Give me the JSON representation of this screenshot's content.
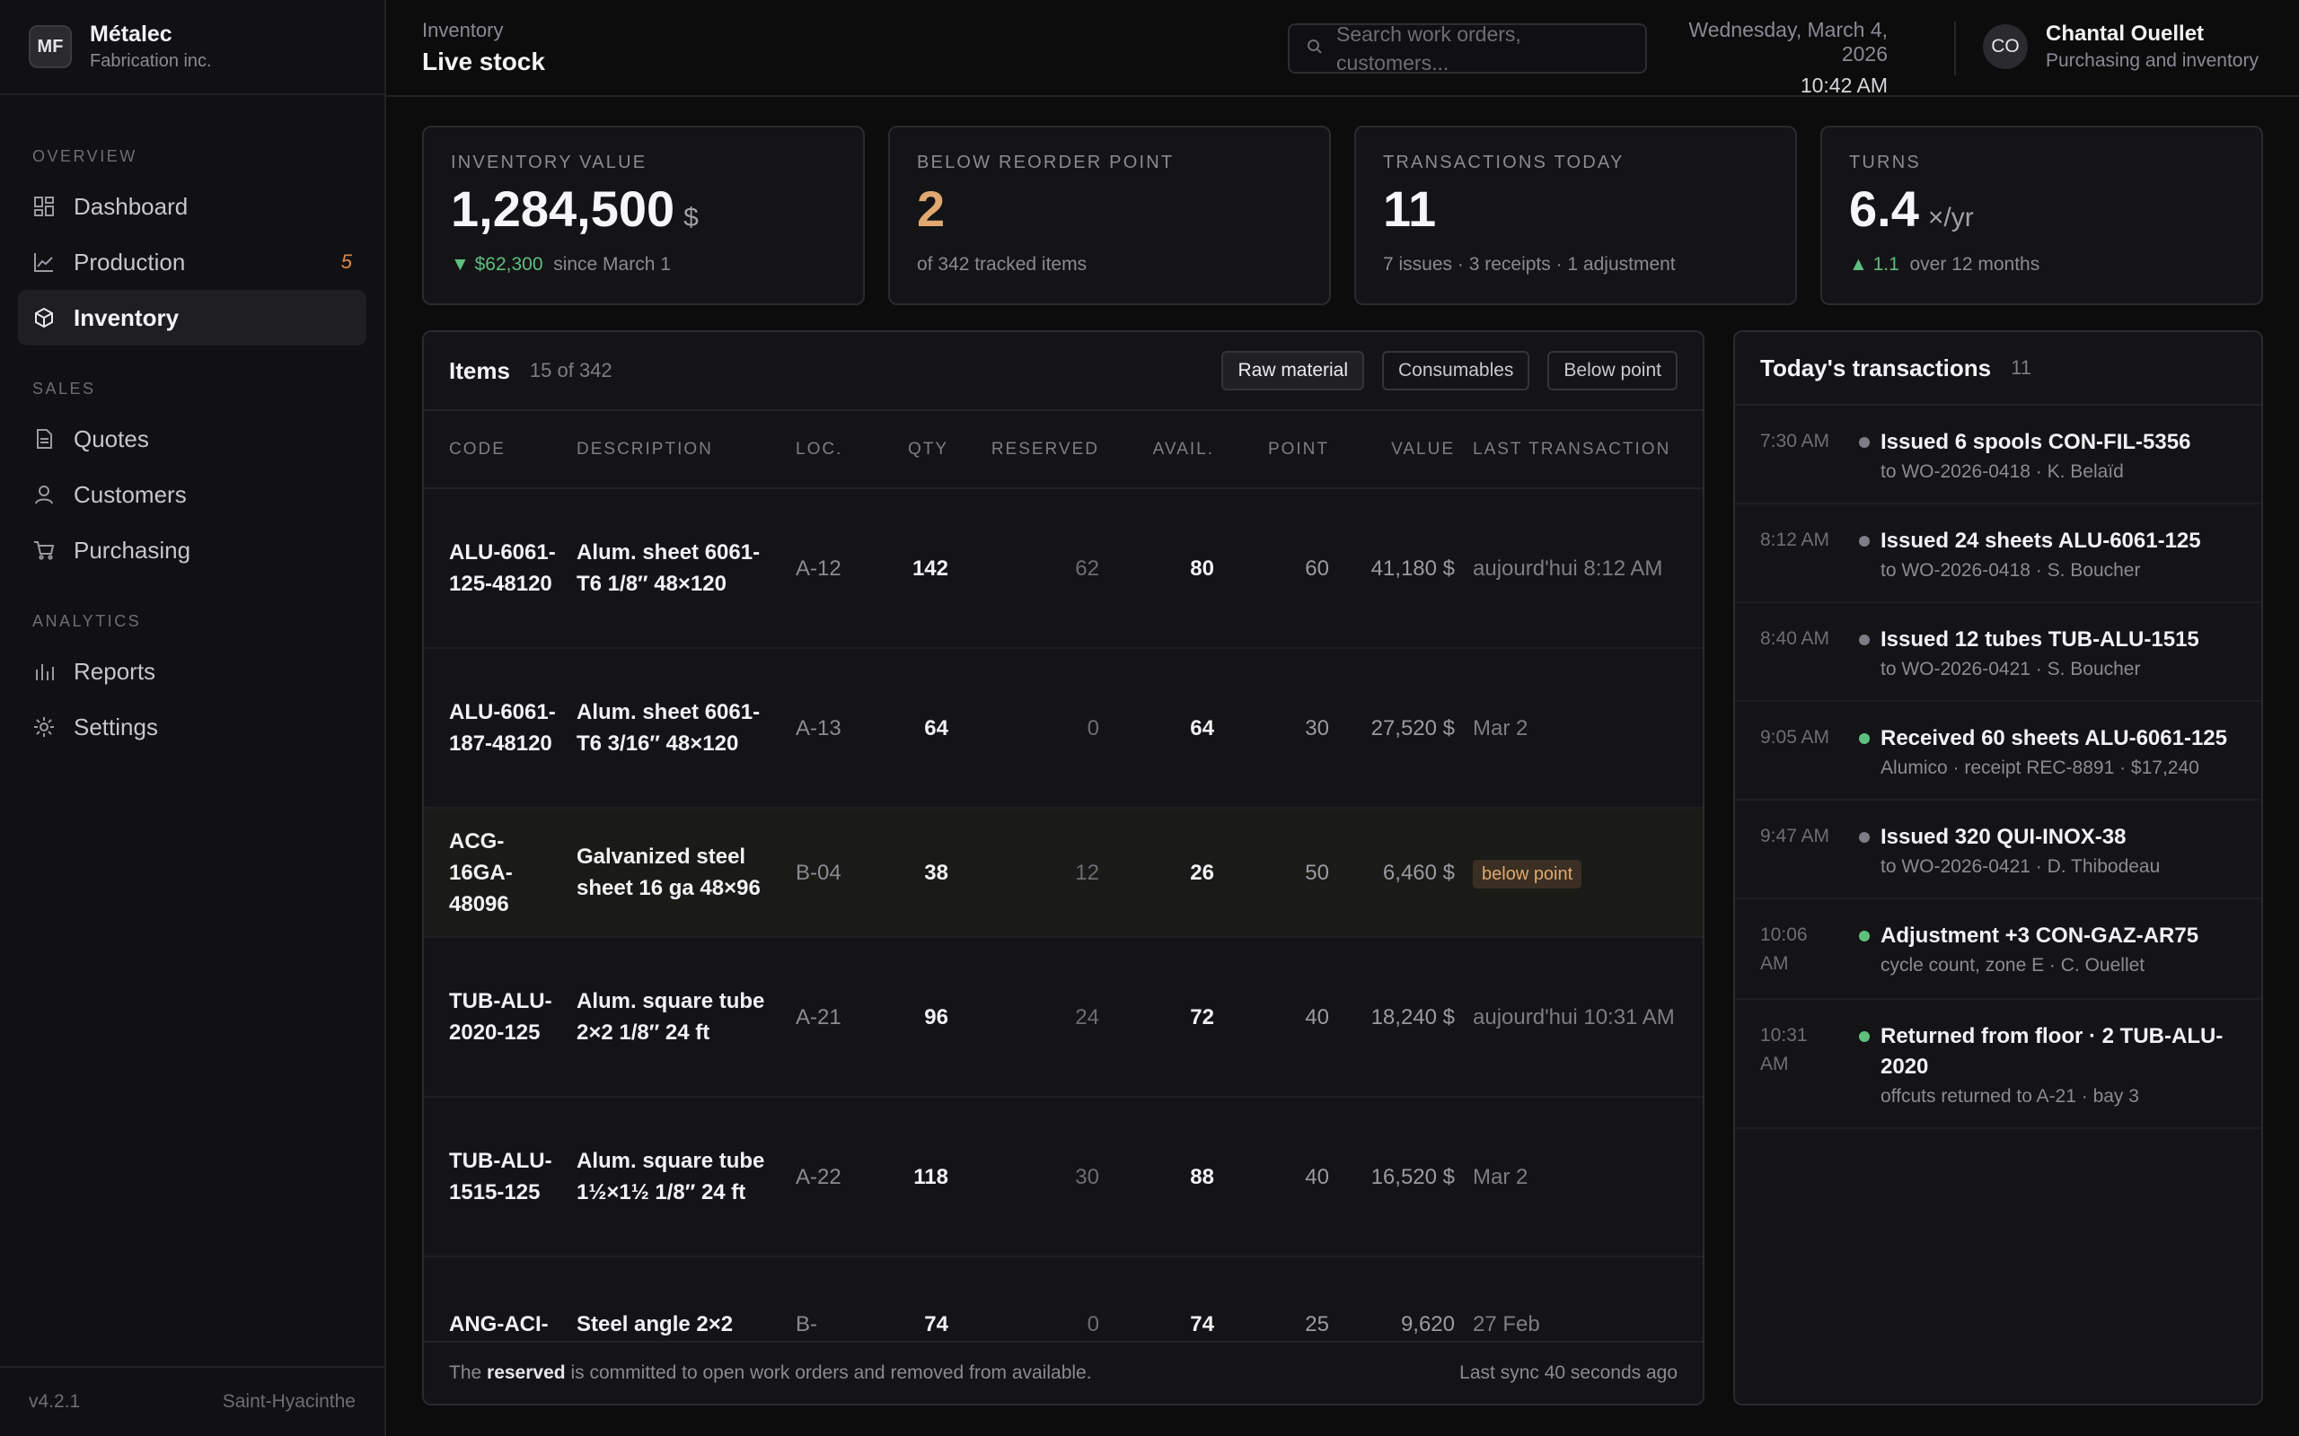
{
  "brand": {
    "logo": "MF",
    "name": "Métalec",
    "sub": "Fabrication inc."
  },
  "nav": {
    "sections": [
      {
        "label": "OVERVIEW",
        "items": [
          {
            "label": "Dashboard",
            "icon": "dashboard-icon"
          },
          {
            "label": "Production",
            "icon": "chart-icon",
            "badge": "5"
          },
          {
            "label": "Inventory",
            "icon": "box-icon",
            "active": true
          }
        ]
      },
      {
        "label": "SALES",
        "items": [
          {
            "label": "Quotes",
            "icon": "document-icon"
          },
          {
            "label": "Customers",
            "icon": "user-icon"
          },
          {
            "label": "Purchasing",
            "icon": "cart-icon"
          }
        ]
      },
      {
        "label": "ANALYTICS",
        "items": [
          {
            "label": "Reports",
            "icon": "bar-chart-icon"
          },
          {
            "label": "Settings",
            "icon": "gear-icon"
          }
        ]
      }
    ]
  },
  "sidebar_footer": {
    "version": "v4.2.1",
    "location": "Saint-Hyacinthe"
  },
  "header": {
    "breadcrumb": "Inventory",
    "title": "Live stock",
    "search_placeholder": "Search work orders, customers...",
    "date": "Wednesday, March 4, 2026",
    "time": "10:42 AM",
    "user": {
      "initials": "CO",
      "name": "Chantal Ouellet",
      "role": "Purchasing and inventory"
    }
  },
  "kpis": [
    {
      "label": "INVENTORY VALUE",
      "value": "1,284,500",
      "unit": "$",
      "delta": "▼ $62,300",
      "sub": "since March 1"
    },
    {
      "label": "BELOW REORDER POINT",
      "value": "2",
      "unit": "",
      "delta": "",
      "sub": "of 342 tracked items",
      "warn": true
    },
    {
      "label": "TRANSACTIONS TODAY",
      "value": "11",
      "unit": "",
      "delta": "",
      "sub": "7 issues · 3 receipts · 1 adjustment"
    },
    {
      "label": "TURNS",
      "value": "6.4",
      "unit": "×/yr",
      "delta": "▲ 1.1",
      "sub": "over 12 months"
    }
  ],
  "items": {
    "title": "Items",
    "count": "15 of 342",
    "filters": [
      {
        "label": "Raw material",
        "on": true
      },
      {
        "label": "Consumables",
        "on": false
      },
      {
        "label": "Below point",
        "on": false
      }
    ],
    "columns": [
      "CODE",
      "DESCRIPTION",
      "LOC.",
      "QTY",
      "RESERVED",
      "AVAIL.",
      "POINT",
      "VALUE",
      "LAST TRANSACTION"
    ],
    "rows": [
      {
        "code": "ALU-6061-125-48120",
        "desc": "Alum. sheet 6061-T6 1/8″ 48×120",
        "loc": "A-12",
        "qty": "142",
        "reserved": "62",
        "avail": "80",
        "point": "60",
        "value": "41,180 $",
        "last": "aujourd'hui 8:12 AM",
        "below": false
      },
      {
        "code": "ALU-6061-187-48120",
        "desc": "Alum. sheet 6061-T6 3/16″ 48×120",
        "loc": "A-13",
        "qty": "64",
        "reserved": "0",
        "avail": "64",
        "point": "30",
        "value": "27,520 $",
        "last": "Mar 2",
        "below": false
      },
      {
        "code": "ACG-16GA-48096",
        "desc": "Galvanized steel sheet 16 ga 48×96",
        "loc": "B-04",
        "qty": "38",
        "reserved": "12",
        "avail": "26",
        "point": "50",
        "value": "6,460 $",
        "last": "below point",
        "below": true
      },
      {
        "code": "TUB-ALU-2020-125",
        "desc": "Alum. square tube 2×2 1/8″ 24 ft",
        "loc": "A-21",
        "qty": "96",
        "reserved": "24",
        "avail": "72",
        "point": "40",
        "value": "18,240 $",
        "last": "aujourd'hui 10:31 AM",
        "below": false
      },
      {
        "code": "TUB-ALU-1515-125",
        "desc": "Alum. square tube 1½×1½ 1/8″ 24 ft",
        "loc": "A-22",
        "qty": "118",
        "reserved": "30",
        "avail": "88",
        "point": "40",
        "value": "16,520 $",
        "last": "Mar 2",
        "below": false
      },
      {
        "code": "ANG-ACI-",
        "desc": "Steel angle 2×2",
        "loc": "B-",
        "qty": "74",
        "reserved": "0",
        "avail": "74",
        "point": "25",
        "value": "9,620",
        "last": "27 Feb",
        "below": false
      }
    ],
    "footer_prefix": "The",
    "footer_bold": "reserved",
    "footer_suffix": "is committed to open work orders and removed from available.",
    "sync": "Last sync 40 seconds ago"
  },
  "transactions": {
    "title": "Today's transactions",
    "count": "11",
    "colors": {
      "issue": "#7d7d85",
      "receipt": "#5fbf7f"
    },
    "items": [
      {
        "time": "7:30 AM",
        "main": "Issued 6 spools CON-FIL-5356",
        "sub": "to WO-2026-0418 · K. Belaïd",
        "kind": "issue"
      },
      {
        "time": "8:12 AM",
        "main": "Issued 24 sheets ALU-6061-125",
        "sub": "to WO-2026-0418 · S. Boucher",
        "kind": "issue"
      },
      {
        "time": "8:40 AM",
        "main": "Issued 12 tubes TUB-ALU-1515",
        "sub": "to WO-2026-0421 · S. Boucher",
        "kind": "issue"
      },
      {
        "time": "9:05 AM",
        "main": "Received 60 sheets ALU-6061-125",
        "sub": "Alumico · receipt REC-8891 · $17,240",
        "kind": "receipt"
      },
      {
        "time": "9:47 AM",
        "main": "Issued 320 QUI-INOX-38",
        "sub": "to WO-2026-0421 · D. Thibodeau",
        "kind": "issue"
      },
      {
        "time": "10:06 AM",
        "main": "Adjustment +3 CON-GAZ-AR75",
        "sub": "cycle count, zone E · C. Ouellet",
        "kind": "receipt"
      },
      {
        "time": "10:31 AM",
        "main": "Returned from floor · 2 TUB-ALU-2020",
        "sub": "offcuts returned to A-21 · bay 3",
        "kind": "receipt"
      }
    ]
  }
}
